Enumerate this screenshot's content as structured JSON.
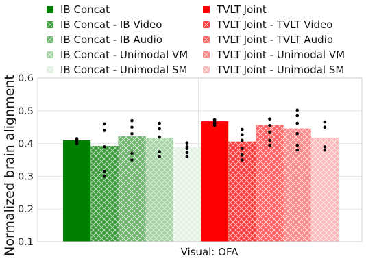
{
  "chart_data": {
    "type": "bar",
    "title": "",
    "xlabel": "Visual: OFA",
    "ylabel": "Normalized brain alignment",
    "ylim": [
      0.1,
      0.6
    ],
    "yticks": [
      "0.1",
      "0.2",
      "0.3",
      "0.4",
      "0.5",
      "0.6"
    ],
    "grid": true,
    "legend_position": "top",
    "series": [
      {
        "name": "IB Concat",
        "value": 0.41,
        "color": "#008000",
        "hatch": "none",
        "points": [
          0.4,
          0.405,
          0.41,
          0.415
        ]
      },
      {
        "name": "IB Concat - IB Video",
        "value": 0.393,
        "color": "#3a9a3a",
        "hatch": "cross",
        "points": [
          0.3,
          0.315,
          0.39,
          0.44,
          0.46
        ]
      },
      {
        "name": "IB Concat - IB Audio",
        "value": 0.422,
        "color": "#6db26d",
        "hatch": "cross",
        "points": [
          0.35,
          0.37,
          0.43,
          0.45,
          0.47
        ]
      },
      {
        "name": "IB Concat - Unimodal VM",
        "value": 0.418,
        "color": "#a5d3a5",
        "hatch": "cross",
        "points": [
          0.36,
          0.375,
          0.42,
          0.445,
          0.462
        ]
      },
      {
        "name": "IB Concat - Unimodal SM",
        "value": 0.39,
        "color": "#e3f1e3",
        "hatch": "cross",
        "points": [
          0.36,
          0.372,
          0.385,
          0.39,
          0.402
        ]
      },
      {
        "name": "TVLT Joint",
        "value": 0.468,
        "color": "#ff0000",
        "hatch": "none",
        "points": [
          0.455,
          0.46,
          0.465,
          0.47,
          0.473
        ]
      },
      {
        "name": "TVLT Joint - TVLT Video",
        "value": 0.406,
        "color": "#f23b3b",
        "hatch": "cross",
        "points": [
          0.35,
          0.365,
          0.385,
          0.41,
          0.427,
          0.443
        ]
      },
      {
        "name": "TVLT Joint - TVLT Audio",
        "value": 0.457,
        "color": "#f76262",
        "hatch": "cross",
        "points": [
          0.395,
          0.41,
          0.435,
          0.455,
          0.475
        ]
      },
      {
        "name": "TVLT Joint - Unimodal VM",
        "value": 0.446,
        "color": "#f98888",
        "hatch": "cross",
        "points": [
          0.38,
          0.395,
          0.43,
          0.462,
          0.485,
          0.502
        ]
      },
      {
        "name": "TVLT Joint - Unimodal SM",
        "value": 0.418,
        "color": "#fbb9b9",
        "hatch": "cross",
        "points": [
          0.38,
          0.39,
          0.45,
          0.466
        ]
      }
    ]
  }
}
